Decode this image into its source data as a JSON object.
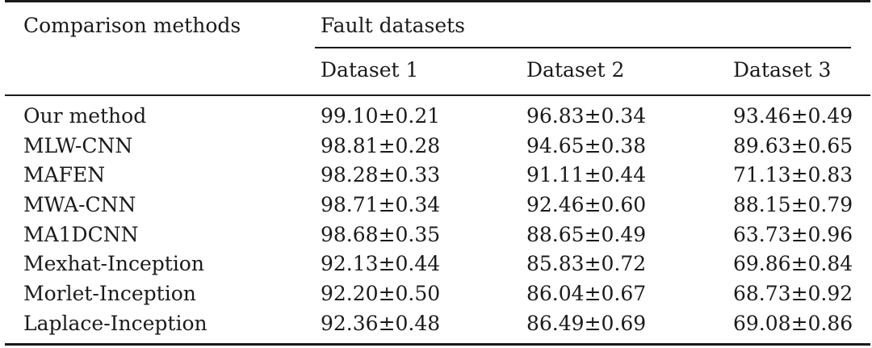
{
  "table": {
    "header": {
      "method_col": "Comparison methods",
      "group": "Fault datasets",
      "datasets": [
        "Dataset 1",
        "Dataset 2",
        "Dataset 3"
      ]
    },
    "rows": [
      {
        "method": "Our method",
        "values": [
          "99.10±0.21",
          "96.83±0.34",
          "93.46±0.49"
        ]
      },
      {
        "method": "MLW-CNN",
        "values": [
          "98.81±0.28",
          "94.65±0.38",
          "89.63±0.65"
        ]
      },
      {
        "method": "MAFEN",
        "values": [
          "98.28±0.33",
          "91.11±0.44",
          "71.13±0.83"
        ]
      },
      {
        "method": "MWA-CNN",
        "values": [
          "98.71±0.34",
          "92.46±0.60",
          "88.15±0.79"
        ]
      },
      {
        "method": "MA1DCNN",
        "values": [
          "98.68±0.35",
          "88.65±0.49",
          "63.73±0.96"
        ]
      },
      {
        "method": "Mexhat-Inception",
        "values": [
          "92.13±0.44",
          "85.83±0.72",
          "69.86±0.84"
        ]
      },
      {
        "method": "Morlet-Inception",
        "values": [
          "92.20±0.50",
          "86.04±0.67",
          "68.73±0.92"
        ]
      },
      {
        "method": "Laplace-Inception",
        "values": [
          "92.36±0.48",
          "86.49±0.69",
          "69.08±0.86"
        ]
      }
    ]
  }
}
